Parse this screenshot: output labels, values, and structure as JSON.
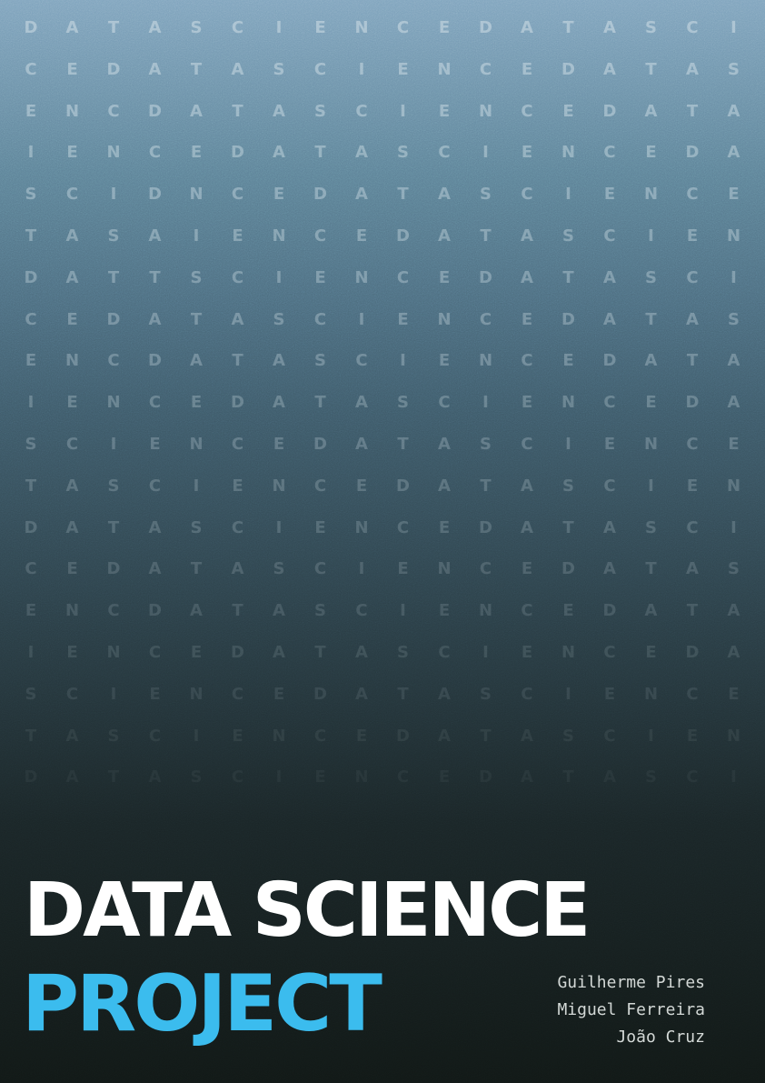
{
  "background_letters": {
    "rows": [
      "DATASCIENCEDATASCI",
      "CEDATASCIENCEDATAS",
      "ENCDATASCIENCEDATA",
      "IENCEDATASCIENCEDA",
      "SCIDNCEDATASCIENCE",
      "TASAIENCEDATASCIEN",
      "DATTSCIENCEDATASCI",
      "CEDATASCIENCEDATAS",
      "ENCDATASCIENCEDATA",
      "IENCEDATASCIENCEDA",
      "SCIENCEDATASCIENCE",
      "TASCIENCEDATASCIEN",
      "DATASCIENCEDATASCI",
      "CEDATASCIENCEDATAS",
      "ENCDATASCIENCEDATA",
      "IENCEDATASCIENCEDA",
      "SCIENCEDATASCIENCE",
      "TASCIENCEDATASCIEN",
      "DATASCIENCEDATASCI"
    ]
  },
  "title": {
    "line1": "DATA SCIENCE",
    "line2": "PROJECT"
  },
  "authors": [
    "Guilherme Pires",
    "Miguel Ferreira",
    "João Cruz"
  ],
  "colors": {
    "title_primary": "#ffffff",
    "title_accent": "#3bbcee",
    "authors_text": "#d3d8d6"
  }
}
